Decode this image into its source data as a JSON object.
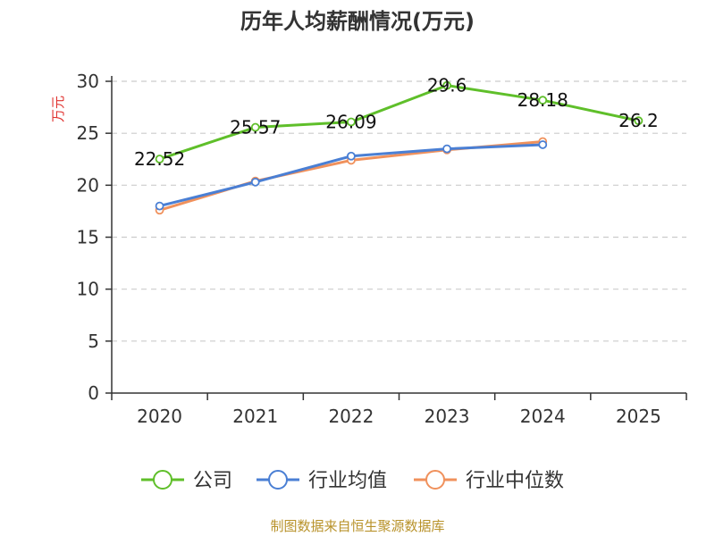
{
  "chart_data": {
    "type": "line",
    "title": "历年人均薪酬情况(万元)",
    "ylabel": "万元",
    "xlabel": "",
    "ylim": [
      0,
      30
    ],
    "yticks": [
      0,
      5,
      10,
      15,
      20,
      25,
      30
    ],
    "categories": [
      "2020",
      "2021",
      "2022",
      "2023",
      "2024",
      "2025"
    ],
    "series": [
      {
        "name": "公司",
        "color": "#5fbf2a",
        "values": [
          22.52,
          25.57,
          26.09,
          29.6,
          28.18,
          26.2
        ],
        "labels": [
          "22.52",
          "25.57",
          "26.09",
          "29.6",
          "28.18",
          "26.2"
        ]
      },
      {
        "name": "行业均值",
        "color": "#4a7fd4",
        "values": [
          18.0,
          20.3,
          22.8,
          23.5,
          23.9,
          null
        ]
      },
      {
        "name": "行业中位数",
        "color": "#f0915c",
        "values": [
          17.6,
          20.4,
          22.4,
          23.4,
          24.2,
          null
        ]
      }
    ],
    "legend_position": "bottom",
    "grid": true
  },
  "footer": {
    "source": "制图数据来自恒生聚源数据库"
  }
}
